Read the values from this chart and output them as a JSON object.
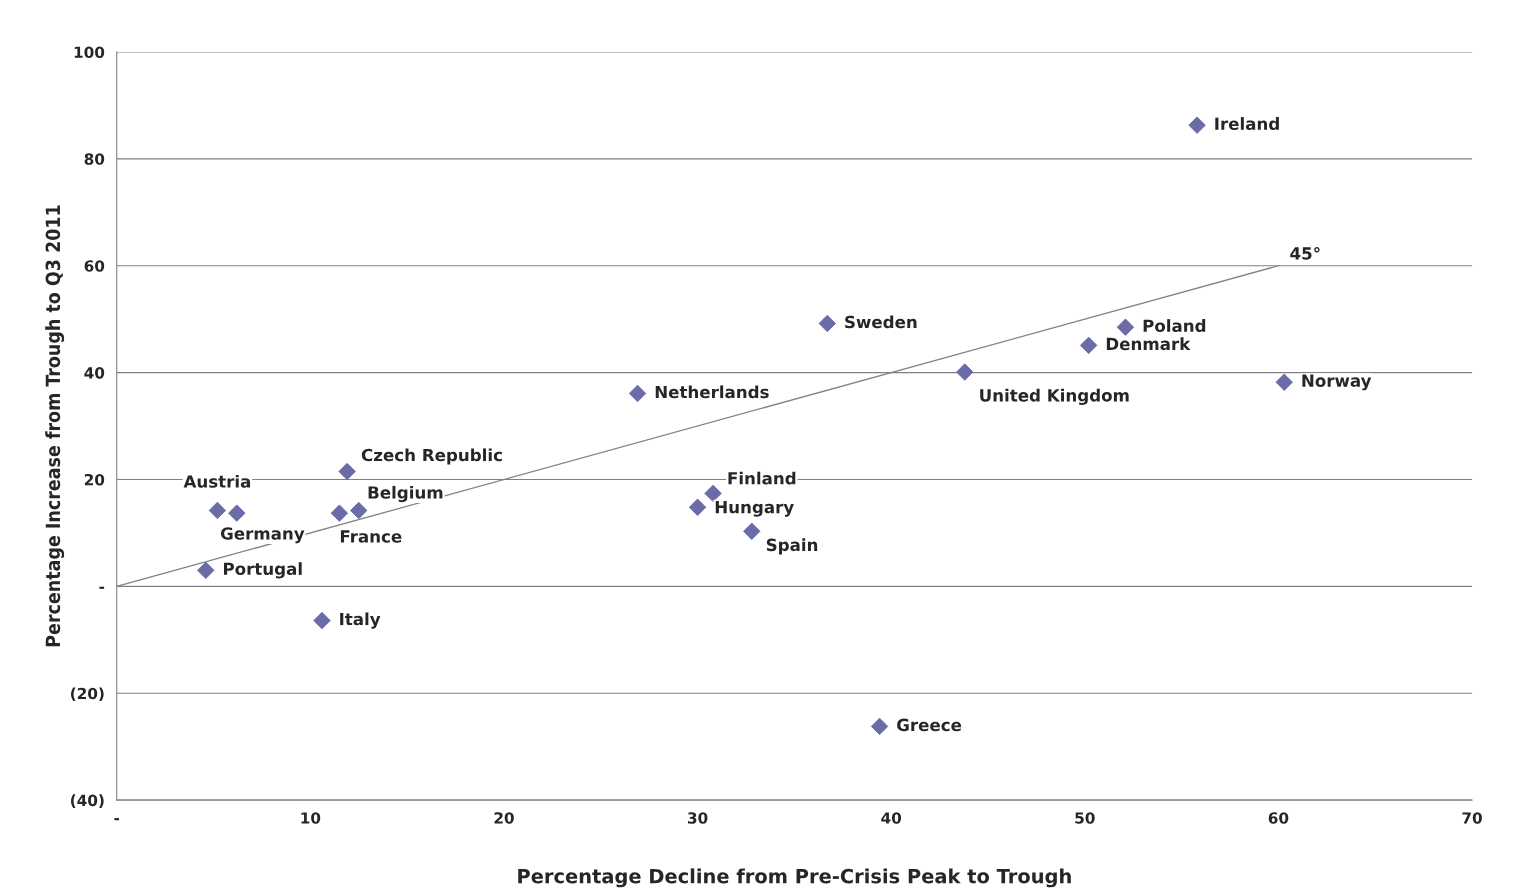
{
  "chart_data": {
    "type": "scatter",
    "xlabel": "Percentage Decline from Pre-Crisis Peak to Trough",
    "ylabel": "Percentage Increase from Trough to Q3 2011",
    "marker": "diamond",
    "grid": "y",
    "legend": false,
    "xlim": [
      0,
      70
    ],
    "xticks": [
      {
        "value": 0,
        "label": "-"
      },
      10,
      20,
      30,
      40,
      50,
      60,
      70
    ],
    "ylim": [
      -40,
      100
    ],
    "yticks": [
      {
        "value": -40,
        "label": "(40)"
      },
      {
        "value": -20,
        "label": "(20)"
      },
      {
        "value": 0,
        "label": "-"
      },
      20,
      40,
      60,
      80,
      100
    ],
    "series": [
      {
        "color": "#6b6ba8",
        "x": [
          55.8,
          36.7,
          52.1,
          50.2,
          43.8,
          60.3,
          26.9,
          11.9,
          30.8,
          30.0,
          32.8,
          5.2,
          6.2,
          11.5,
          12.5,
          4.6,
          10.6,
          39.4
        ],
        "values": [
          86.3,
          49.2,
          48.5,
          45.1,
          40.1,
          38.2,
          36.1,
          21.5,
          17.4,
          14.8,
          10.3,
          14.2,
          13.7,
          13.7,
          14.2,
          3.0,
          -6.4,
          -26.2
        ]
      },
      {
        "type": "line",
        "marker": "none",
        "color": "#808080",
        "x": [
          0,
          60
        ],
        "values": [
          0,
          60
        ]
      }
    ],
    "annotations": [
      {
        "text": "Ireland",
        "x": 55.8,
        "y": 86.3
      },
      {
        "text": "Sweden",
        "x": 36.7,
        "y": 49.2
      },
      {
        "text": "Poland",
        "x": 52.1,
        "y": 48.5
      },
      {
        "text": "Denmark",
        "x": 50.2,
        "y": 45.1
      },
      {
        "text": "United Kingdom",
        "x": 43.8,
        "y": 40.1
      },
      {
        "text": "Norway",
        "x": 60.3,
        "y": 38.2
      },
      {
        "text": "Netherlands",
        "x": 26.9,
        "y": 36.1
      },
      {
        "text": "Czech Republic",
        "x": 11.9,
        "y": 21.5
      },
      {
        "text": "Finland",
        "x": 30.8,
        "y": 17.4
      },
      {
        "text": "Hungary",
        "x": 30.0,
        "y": 14.8
      },
      {
        "text": "Spain",
        "x": 32.8,
        "y": 10.3
      },
      {
        "text": "Austria",
        "x": 5.2,
        "y": 14.2
      },
      {
        "text": "Germany",
        "x": 6.2,
        "y": 13.7
      },
      {
        "text": "France",
        "x": 11.5,
        "y": 13.7
      },
      {
        "text": "Belgium",
        "x": 12.5,
        "y": 14.2
      },
      {
        "text": "Portugal",
        "x": 4.6,
        "y": 3.0
      },
      {
        "text": "Italy",
        "x": 10.6,
        "y": -6.4
      },
      {
        "text": "Greece",
        "x": 39.4,
        "y": -26.2
      },
      {
        "text": "45°",
        "x": 60,
        "y": 60
      }
    ]
  }
}
